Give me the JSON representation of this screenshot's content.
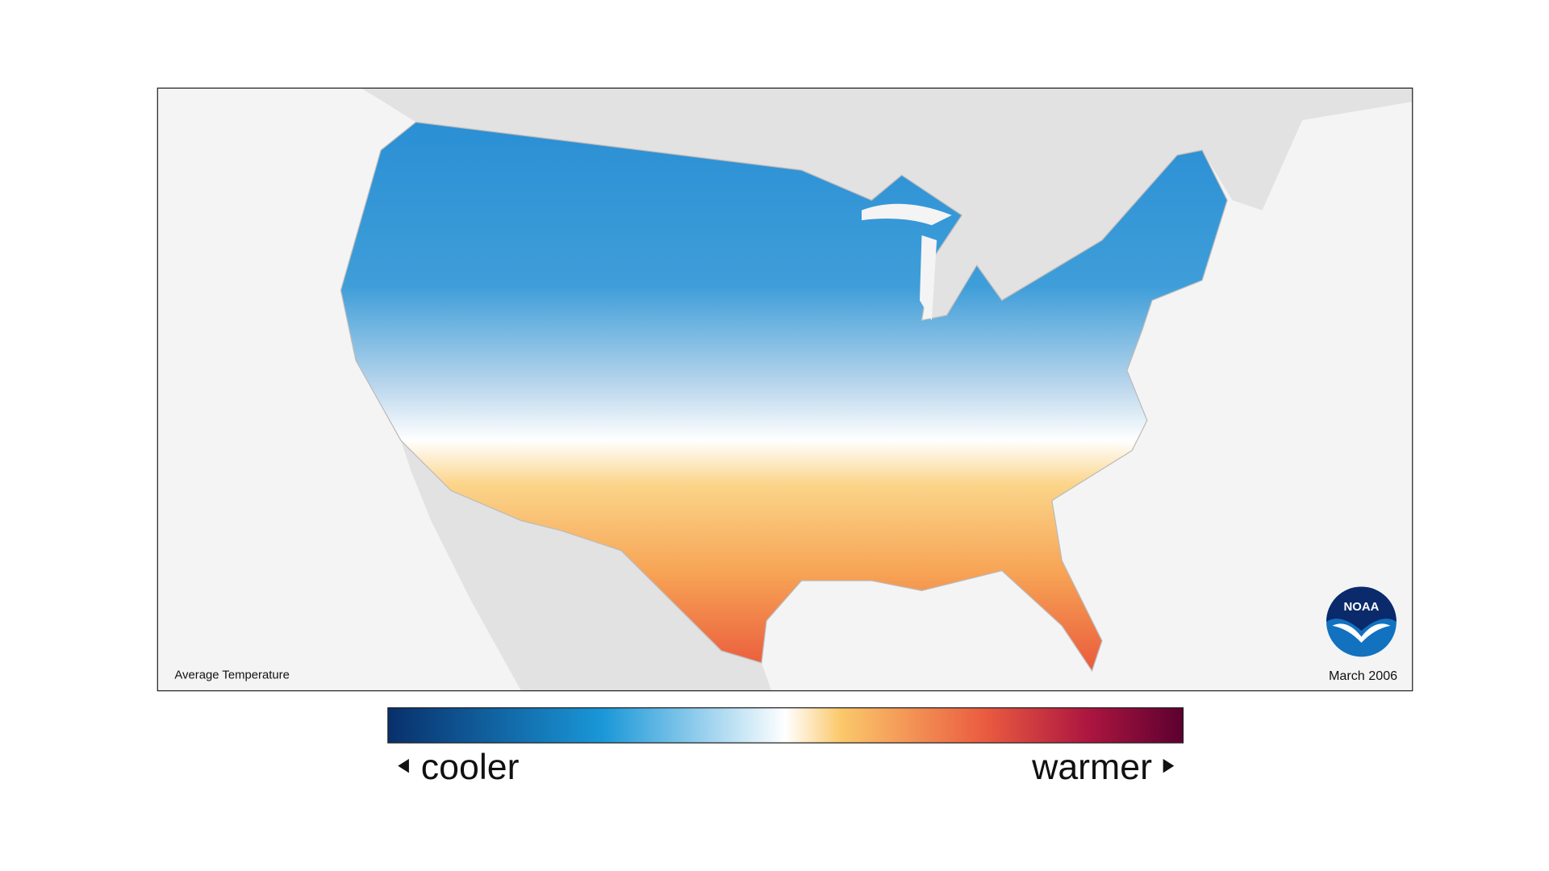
{
  "map": {
    "title": "Average Temperature",
    "date": "March 2006",
    "logo": "NOAA"
  },
  "legend": {
    "low": "cooler",
    "high": "warmer"
  }
}
